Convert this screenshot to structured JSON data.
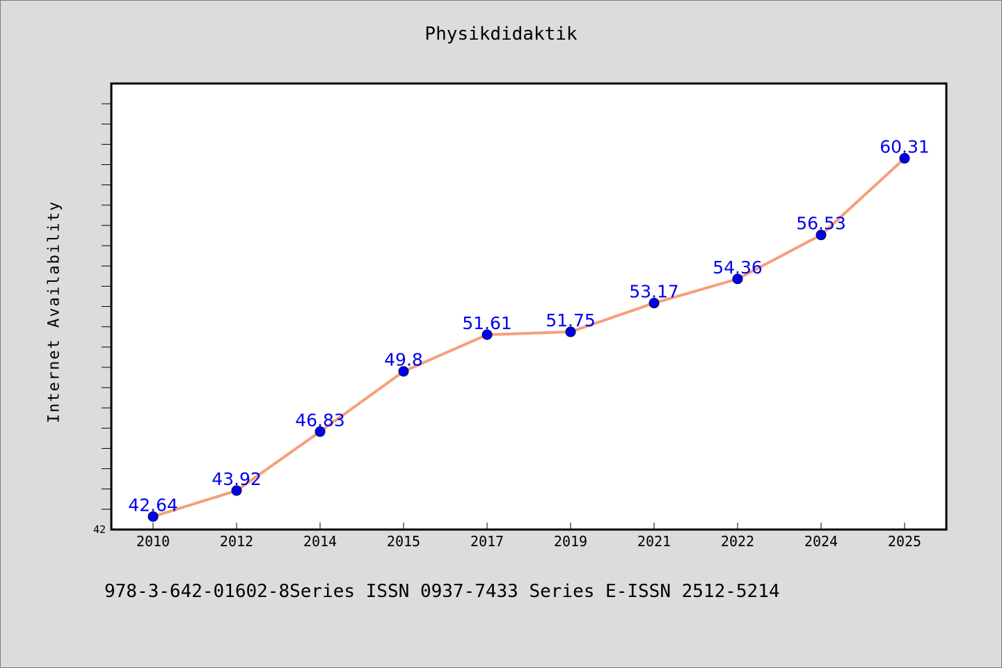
{
  "chart_data": {
    "type": "line",
    "title": "Physikdidaktik",
    "xlabel": "",
    "ylabel": "Internet Availability",
    "categories": [
      "2010",
      "2012",
      "2014",
      "2015",
      "2017",
      "2019",
      "2021",
      "2022",
      "2024",
      "2025"
    ],
    "values": [
      42.64,
      43.92,
      46.83,
      49.8,
      51.61,
      51.75,
      53.17,
      54.36,
      56.53,
      60.31
    ],
    "data_labels": [
      "42.64",
      "43.92",
      "46.83",
      "49.8",
      "51.61",
      "51.75",
      "53.17",
      "54.36",
      "56.53",
      "60.31"
    ],
    "ylim": [
      42,
      64
    ],
    "y_tick_labels": [
      "42"
    ],
    "grid": false,
    "line_color": "#f4a07a",
    "marker_color": "#0000ee",
    "label_color": "#0000ee"
  },
  "footer": {
    "text": "978-3-642-01602-8Series ISSN 0937-7433 Series E-ISSN 2512-5214"
  }
}
